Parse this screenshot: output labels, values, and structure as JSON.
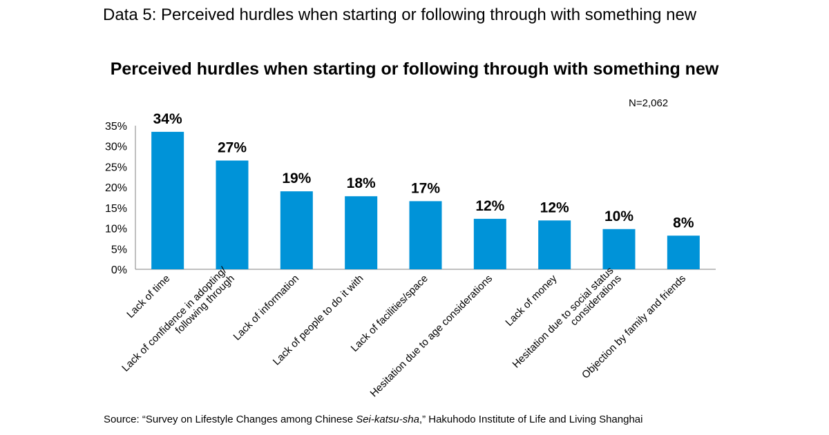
{
  "header": {
    "title": "Data 5: Perceived hurdles when starting or following through with something new"
  },
  "sample_size": "N=2,062",
  "source": {
    "prefix": "Source: “Survey on Lifestyle Changes among Chinese ",
    "italic": "Sei-katsu-sha",
    "suffix": ",” Hakuhodo Institute of Life and Living Shanghai"
  },
  "colors": {
    "bar": "#0093d8",
    "axis": "#7f7f7f",
    "text": "#000000"
  },
  "chart_data": {
    "type": "bar",
    "title": "Perceived hurdles when starting or following through with something new",
    "categories": [
      [
        "Lack of time"
      ],
      [
        "Lack of confidence in adopting/",
        "following through"
      ],
      [
        "Lack of information"
      ],
      [
        "Lack of people to do it with"
      ],
      [
        "Lack of facilities/space"
      ],
      [
        "Hesitation due to age considerations"
      ],
      [
        "Lack of money"
      ],
      [
        "Hesitation due to social status",
        "considerations"
      ],
      [
        "Objection by family and friends"
      ]
    ],
    "values": [
      33.5,
      26.5,
      19,
      17.8,
      16.6,
      12.3,
      11.9,
      9.8,
      8.2
    ],
    "data_labels": [
      "34%",
      "27%",
      "19%",
      "18%",
      "17%",
      "12%",
      "12%",
      "10%",
      "8%"
    ],
    "y_ticks": [
      "0%",
      "5%",
      "10%",
      "15%",
      "20%",
      "25%",
      "30%",
      "35%"
    ],
    "ylim": [
      0,
      35
    ],
    "grid": false,
    "legend": "none"
  }
}
